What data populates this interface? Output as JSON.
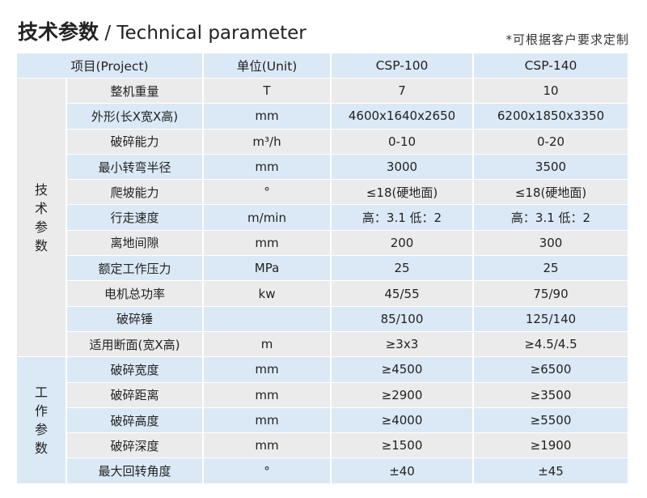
{
  "title": {
    "cn": "技术参数",
    "sep": " / ",
    "en": "Technical parameter"
  },
  "note": "*可根据客户要求定制",
  "header": {
    "project": "项目(Project)",
    "unit": "单位(Unit)",
    "models": [
      "CSP-100",
      "CSP-140"
    ]
  },
  "groups": [
    {
      "label": [
        "技",
        "术",
        "参",
        "数"
      ],
      "rows": [
        {
          "name": "整机重量",
          "unit": "T",
          "v1": "7",
          "v2": "10"
        },
        {
          "name": "外形(长X宽X高)",
          "unit": "mm",
          "v1": "4600x1640x2650",
          "v2": "6200x1850x3350"
        },
        {
          "name": "破碎能力",
          "unit": "m³/h",
          "v1": "0-10",
          "v2": "0-20"
        },
        {
          "name": "最小转弯半径",
          "unit": "mm",
          "v1": "3000",
          "v2": "3500"
        },
        {
          "name": "爬坡能力",
          "unit": "°",
          "v1": "≤18(硬地面)",
          "v2": "≤18(硬地面)"
        },
        {
          "name": "行走速度",
          "unit": "m/min",
          "v1": "高：3.1  低：2",
          "v2": "高：3.1  低：2"
        },
        {
          "name": "离地间隙",
          "unit": "mm",
          "v1": "200",
          "v2": "300"
        },
        {
          "name": "额定工作压力",
          "unit": "MPa",
          "v1": "25",
          "v2": "25"
        },
        {
          "name": "电机总功率",
          "unit": "kw",
          "v1": "45/55",
          "v2": "75/90"
        },
        {
          "name": "破碎锤",
          "unit": "",
          "v1": "85/100",
          "v2": "125/140"
        },
        {
          "name": "适用断面(宽X高)",
          "unit": "m",
          "v1": "≥3x3",
          "v2": "≥4.5/4.5"
        }
      ]
    },
    {
      "label": [
        "工",
        "作",
        "参",
        "数"
      ],
      "rows": [
        {
          "name": "破碎宽度",
          "unit": "mm",
          "v1": "≥4500",
          "v2": "≥6500"
        },
        {
          "name": "破碎距离",
          "unit": "mm",
          "v1": "≥2900",
          "v2": "≥3500"
        },
        {
          "name": "破碎高度",
          "unit": "mm",
          "v1": "≥4000",
          "v2": "≥5500"
        },
        {
          "name": "破碎深度",
          "unit": "mm",
          "v1": "≥1500",
          "v2": "≥1900"
        },
        {
          "name": "最大回转角度",
          "unit": "°",
          "v1": "±40",
          "v2": "±45"
        }
      ]
    }
  ],
  "colors": {
    "header_blue": "#dbe9f6",
    "row_gray": "#ebebeb"
  }
}
